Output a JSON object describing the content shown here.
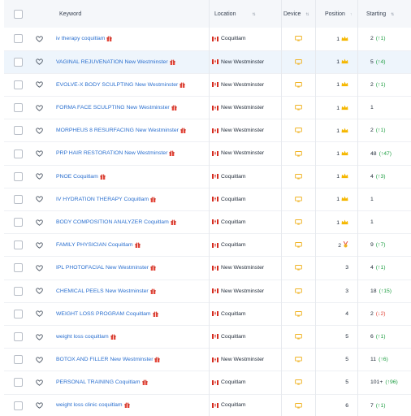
{
  "header": {
    "keyword": "Keyword",
    "location": "Location",
    "device": "Device",
    "position": "Position",
    "starting": "Starting",
    "sort_icon": "⇅",
    "sort_asc_icon": "↑"
  },
  "colors": {
    "keyword_link": "#2a6fcf",
    "up": "#23a046",
    "down": "#e2463a",
    "highlight_row": "#eef5fc",
    "device_icon": "#f0b323",
    "crown": "#f5b700"
  },
  "rows": [
    {
      "keyword": "iv therapy coquitlam",
      "location": "Coquitlam",
      "device": "desktop-icon",
      "position": "1",
      "crown": true,
      "starting": "2",
      "change": "(↑1)",
      "dir": "up",
      "highlighted": false
    },
    {
      "keyword": "VAGINAL REJUVENATION New Westminster",
      "location": "New Westminster",
      "device": "desktop-icon",
      "position": "1",
      "crown": true,
      "starting": "5",
      "change": "(↑4)",
      "dir": "up",
      "highlighted": true
    },
    {
      "keyword": "EVOLVE-X BODY SCULPTING New Westminster",
      "location": "New Westminster",
      "device": "desktop-icon",
      "position": "1",
      "crown": true,
      "starting": "2",
      "change": "(↑1)",
      "dir": "up",
      "highlighted": false
    },
    {
      "keyword": "FORMA FACE SCULPTING New Westminster",
      "location": "New Westminster",
      "device": "desktop-icon",
      "position": "1",
      "crown": true,
      "starting": "1",
      "change": "",
      "dir": "",
      "highlighted": false
    },
    {
      "keyword": "MORPHEUS 8 RESURFACING New Westminster",
      "location": "New Westminster",
      "device": "desktop-icon",
      "position": "1",
      "crown": true,
      "starting": "2",
      "change": "(↑1)",
      "dir": "up",
      "highlighted": false
    },
    {
      "keyword": "PRP HAIR RESTORATION New Westminster",
      "location": "New Westminster",
      "device": "desktop-icon",
      "position": "1",
      "crown": true,
      "starting": "48",
      "change": "(↑47)",
      "dir": "up",
      "highlighted": false
    },
    {
      "keyword": "PNOE Coquitlam",
      "location": "Coquitlam",
      "device": "desktop-icon",
      "position": "1",
      "crown": true,
      "starting": "4",
      "change": "(↑3)",
      "dir": "up",
      "highlighted": false
    },
    {
      "keyword": "IV HYDRATION THERAPY Coquitlam",
      "location": "Coquitlam",
      "device": "desktop-icon",
      "position": "1",
      "crown": true,
      "starting": "1",
      "change": "",
      "dir": "",
      "highlighted": false
    },
    {
      "keyword": "BODY COMPOSITION ANALYZER Coquitlam",
      "location": "Coquitlam",
      "device": "desktop-icon",
      "position": "1",
      "crown": true,
      "starting": "1",
      "change": "",
      "dir": "",
      "highlighted": false
    },
    {
      "keyword": "FAMILY PHYSICIAN Coquitlam",
      "location": "Coquitlam",
      "device": "desktop-icon",
      "position": "2",
      "medal": true,
      "starting": "9",
      "change": "(↑7)",
      "dir": "up",
      "highlighted": false
    },
    {
      "keyword": "IPL PHOTOFACIAL New Westminster",
      "location": "New Westminster",
      "device": "desktop-icon",
      "position": "3",
      "starting": "4",
      "change": "(↑1)",
      "dir": "up",
      "highlighted": false
    },
    {
      "keyword": "CHEMICAL PEELS New Westminster",
      "location": "New Westminster",
      "device": "desktop-icon",
      "position": "3",
      "starting": "18",
      "change": "(↑15)",
      "dir": "up",
      "highlighted": false
    },
    {
      "keyword": "WEIGHT LOSS PROGRAM Coquitlam",
      "location": "Coquitlam",
      "device": "desktop-icon",
      "position": "4",
      "starting": "2",
      "change": "(↓2)",
      "dir": "down",
      "highlighted": false
    },
    {
      "keyword": "weight loss coquitlam",
      "location": "Coquitlam",
      "device": "desktop-icon",
      "position": "5",
      "starting": "6",
      "change": "(↑1)",
      "dir": "up",
      "highlighted": false
    },
    {
      "keyword": "BOTOX AND FILLER New Westminster",
      "location": "New Westminster",
      "device": "desktop-icon",
      "position": "5",
      "starting": "11",
      "change": "(↑6)",
      "dir": "up",
      "highlighted": false
    },
    {
      "keyword": "PERSONAL TRAINING Coquitlam",
      "location": "Coquitlam",
      "device": "desktop-icon",
      "position": "5",
      "starting": "101+",
      "change": "(↑96)",
      "dir": "up",
      "highlighted": false
    },
    {
      "keyword": "weight loss clinic coquitlam",
      "location": "Coquitlam",
      "device": "desktop-icon",
      "position": "6",
      "starting": "7",
      "change": "(↑1)",
      "dir": "up",
      "highlighted": false
    }
  ]
}
